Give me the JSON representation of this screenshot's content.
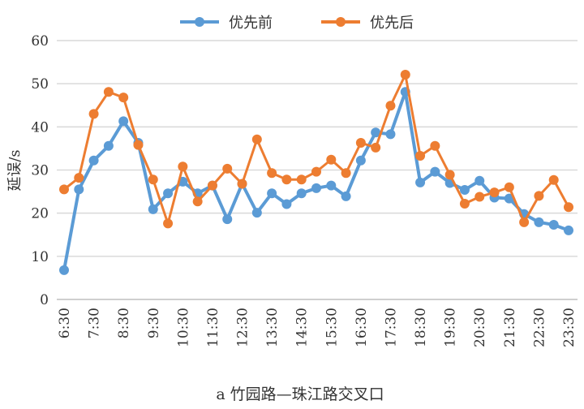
{
  "chart_data": {
    "type": "line",
    "title": "",
    "caption": "a 竹园路—珠江路交叉口",
    "xlabel": "",
    "ylabel": "延误/s",
    "ylim": [
      0,
      60
    ],
    "yticks": [
      "0",
      "10",
      "20",
      "30",
      "40",
      "50",
      "60"
    ],
    "x": [
      "6:30",
      "7:00",
      "7:30",
      "8:00",
      "8:30",
      "9:00",
      "9:30",
      "10:00",
      "10:30",
      "11:00",
      "11:30",
      "12:00",
      "12:30",
      "13:00",
      "13:30",
      "14:00",
      "14:30",
      "15:00",
      "15:30",
      "16:00",
      "16:30",
      "17:00",
      "17:30",
      "18:00",
      "18:30",
      "19:00",
      "19:30",
      "20:00",
      "20:30",
      "21:00",
      "21:30",
      "22:00",
      "22:30",
      "23:00",
      "23:30"
    ],
    "xtick_labels": [
      "6:30",
      "7:30",
      "8:30",
      "9:30",
      "10:30",
      "11:30",
      "12:30",
      "13:30",
      "14:30",
      "15:30",
      "16:30",
      "17:30",
      "18:30",
      "19:30",
      "20:30",
      "21:30",
      "22:30",
      "23:30"
    ],
    "grid": true,
    "legend_position": "top-center",
    "series": [
      {
        "name": "优先前",
        "color": "#5B9BD5",
        "values": [
          6.8,
          25.5,
          32.2,
          35.6,
          41.3,
          36.3,
          20.9,
          24.6,
          27.3,
          24.6,
          26.4,
          18.6,
          26.8,
          20.1,
          24.6,
          22.1,
          24.6,
          25.8,
          26.4,
          23.9,
          32.2,
          38.7,
          38.3,
          48.1,
          27.1,
          29.6,
          27.0,
          25.4,
          27.5,
          23.6,
          23.4,
          19.8,
          17.9,
          17.3,
          16.0
        ]
      },
      {
        "name": "优先后",
        "color": "#ED7D31",
        "values": [
          25.5,
          28.2,
          43.0,
          48.1,
          46.8,
          35.8,
          27.8,
          17.6,
          30.8,
          22.7,
          26.4,
          30.3,
          26.8,
          37.1,
          29.3,
          27.8,
          27.8,
          29.6,
          32.4,
          29.3,
          36.3,
          35.2,
          44.9,
          52.1,
          33.3,
          35.6,
          28.9,
          22.2,
          23.8,
          24.8,
          26.0,
          17.9,
          24.0,
          27.7,
          21.4
        ]
      }
    ]
  }
}
